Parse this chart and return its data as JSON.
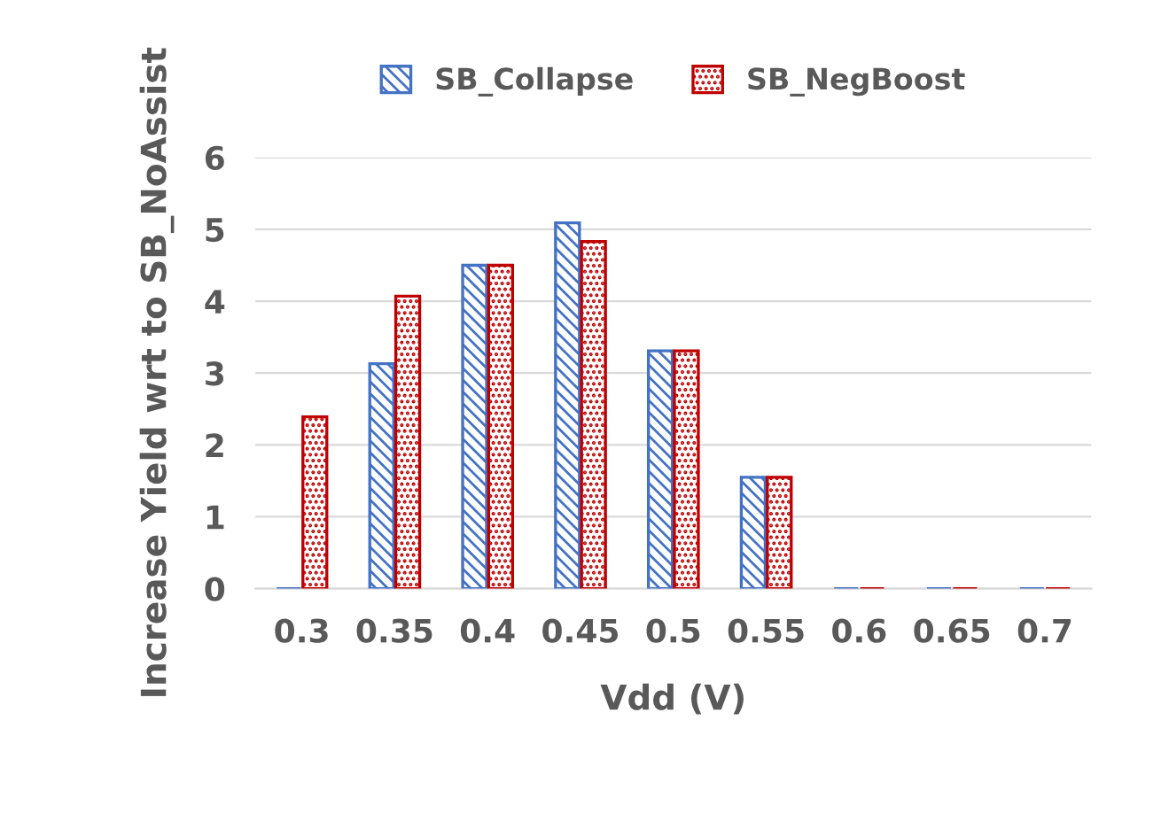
{
  "chart_data": {
    "type": "bar",
    "xlabel": "Vdd (V)",
    "ylabel": "Increase Yield wrt to SB_NoAssist",
    "categories": [
      "0.3",
      "0.35",
      "0.4",
      "0.45",
      "0.5",
      "0.55",
      "0.6",
      "0.65",
      "0.7"
    ],
    "series": [
      {
        "name": "SB_Collapse",
        "color": "#4472c4",
        "values": [
          0,
          3.13,
          4.5,
          5.09,
          3.31,
          1.55,
          0,
          0,
          0
        ]
      },
      {
        "name": "SB_NegBoost",
        "color": "#c00000",
        "values": [
          2.39,
          4.07,
          4.5,
          4.83,
          3.31,
          1.55,
          0,
          0,
          0
        ]
      }
    ],
    "ylim": [
      0,
      6
    ],
    "yticks": [
      0,
      1,
      2,
      3,
      4,
      5,
      6
    ],
    "grid": "y",
    "legend": "top"
  }
}
